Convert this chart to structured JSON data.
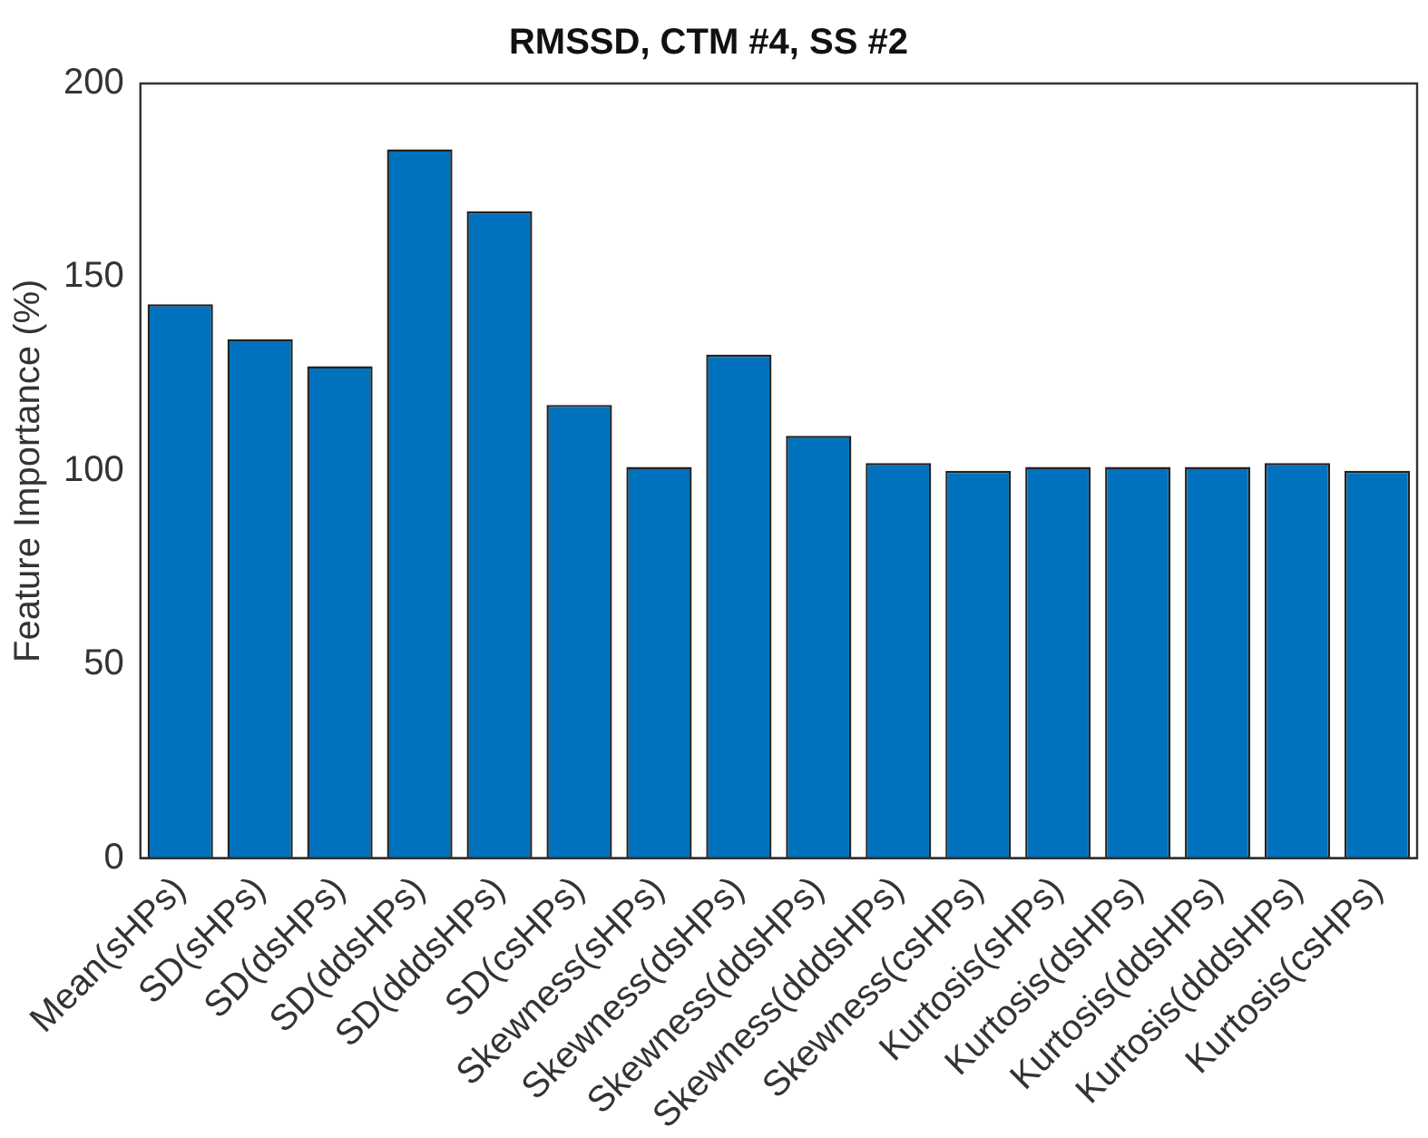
{
  "chart_data": {
    "type": "bar",
    "title": "RMSSD, CTM #4, SS #2",
    "ylabel": "Feature Importance (%)",
    "categories": [
      "Mean(sHPs)",
      "SD(sHPs)",
      "SD(dsHPs)",
      "SD(ddsHPs)",
      "SD(dddsHPs)",
      "SD(csHPs)",
      "Skewness(sHPs)",
      "Skewness(dsHPs)",
      "Skewness(ddsHPs)",
      "Skewness(dddsHPs)",
      "Skewness(csHPs)",
      "Kurtosis(sHPs)",
      "Kurtosis(dsHPs)",
      "Kurtosis(ddsHPs)",
      "Kurtosis(dddsHPs)",
      "Kurtosis(csHPs)"
    ],
    "values": [
      143,
      134,
      127,
      183,
      167,
      117,
      101,
      130,
      109,
      102,
      100,
      101,
      101,
      101,
      102,
      100
    ],
    "color": "#0072bd",
    "ylim": [
      0,
      200
    ],
    "yticks": [
      0,
      50,
      100,
      150,
      200
    ],
    "grid": false,
    "legend": false
  }
}
